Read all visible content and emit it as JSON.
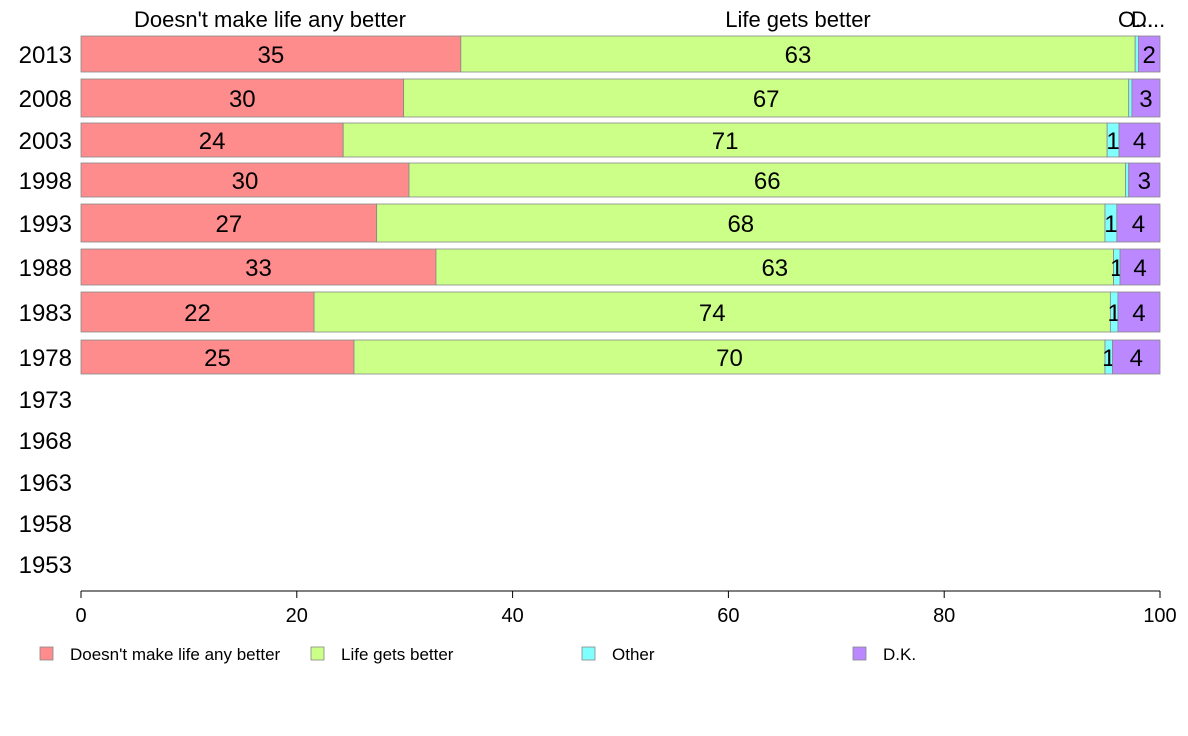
{
  "chart_data": {
    "type": "bar",
    "orientation": "horizontal",
    "stacked": true,
    "categories": [
      "2013",
      "2008",
      "2003",
      "1998",
      "1993",
      "1988",
      "1983",
      "1978",
      "1973",
      "1968",
      "1963",
      "1958",
      "1953"
    ],
    "series": [
      {
        "name": "Doesn't make life any better",
        "color": "#ff8c8c",
        "values": [
          35.2,
          29.9,
          24.3,
          30.4,
          27.4,
          32.9,
          21.6,
          25.3,
          null,
          null,
          null,
          null,
          null
        ],
        "labels": [
          "35",
          "30",
          "24",
          "30",
          "27",
          "33",
          "22",
          "25",
          "",
          "",
          "",
          "",
          ""
        ]
      },
      {
        "name": "Life gets better",
        "color": "#ccff88",
        "values": [
          62.5,
          67.2,
          70.8,
          66.4,
          67.5,
          62.8,
          73.8,
          69.6,
          null,
          null,
          null,
          null,
          null
        ],
        "labels": [
          "63",
          "67",
          "71",
          "66",
          "68",
          "63",
          "74",
          "70",
          "",
          "",
          "",
          "",
          ""
        ]
      },
      {
        "name": "Other",
        "color": "#80ffff",
        "values": [
          0.3,
          0.3,
          1.1,
          0.3,
          1.1,
          0.6,
          0.7,
          0.7,
          null,
          null,
          null,
          null,
          null
        ],
        "labels": [
          "",
          "",
          "1",
          "",
          "1",
          "1",
          "1",
          "1",
          "",
          "",
          "",
          "",
          ""
        ]
      },
      {
        "name": "D.K.",
        "color": "#bb88ff",
        "values": [
          2.0,
          2.6,
          3.8,
          2.9,
          4.0,
          3.7,
          3.9,
          4.4,
          null,
          null,
          null,
          null,
          null
        ],
        "labels": [
          "2",
          "3",
          "4",
          "3",
          "4",
          "4",
          "4",
          "4",
          "",
          "",
          "",
          "",
          ""
        ]
      }
    ],
    "top_labels": [
      "Doesn't make life any better",
      "Life gets better",
      "O...",
      "D..."
    ],
    "xlim": [
      0,
      100
    ],
    "xticks": [
      "0",
      "20",
      "40",
      "60",
      "80",
      "100"
    ],
    "grid": false,
    "legend_position": "bottom"
  }
}
